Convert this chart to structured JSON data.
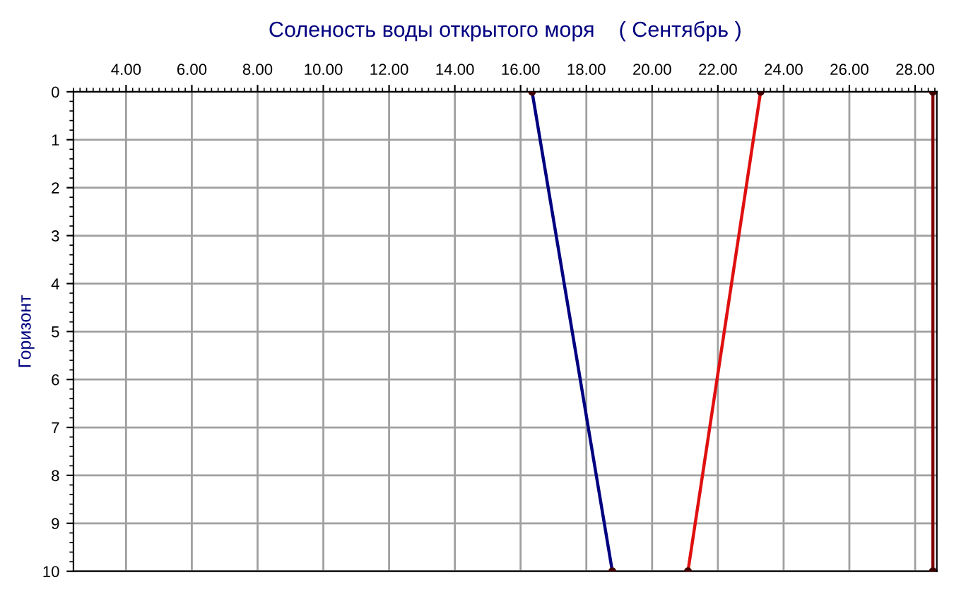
{
  "chart_data": {
    "type": "line",
    "title": "Соленость воды открытого моря    ( Сентябрь )",
    "ylabel": "Горизонт",
    "series": [
      {
        "color": "#000080",
        "x": [
          16.35,
          18.79
        ],
        "values": [
          0,
          10
        ]
      },
      {
        "color": "#e01010",
        "x": [
          23.3,
          21.09
        ],
        "values": [
          0,
          10
        ]
      },
      {
        "color": "#800000",
        "x": [
          28.54,
          28.54
        ],
        "values": [
          0,
          10
        ]
      }
    ],
    "xlim": [
      2.4,
      28.66
    ],
    "ylim": [
      10,
      0
    ],
    "xticks": [
      {
        "value": 4,
        "label": "4.00"
      },
      {
        "value": 6,
        "label": "6.00"
      },
      {
        "value": 8,
        "label": "8.00"
      },
      {
        "value": 10,
        "label": "10.00"
      },
      {
        "value": 12,
        "label": "12.00"
      },
      {
        "value": 14,
        "label": "14.00"
      },
      {
        "value": 16,
        "label": "16.00"
      },
      {
        "value": 18,
        "label": "18.00"
      },
      {
        "value": 20,
        "label": "20.00"
      },
      {
        "value": 22,
        "label": "22.00"
      },
      {
        "value": 24,
        "label": "24.00"
      },
      {
        "value": 26,
        "label": "26.00"
      },
      {
        "value": 28,
        "label": "28.00"
      }
    ],
    "yticks": [
      0,
      1,
      2,
      3,
      4,
      5,
      6,
      7,
      8,
      9,
      10
    ],
    "grid": true,
    "marker": "circle",
    "line_style": "solid",
    "legend": false
  }
}
